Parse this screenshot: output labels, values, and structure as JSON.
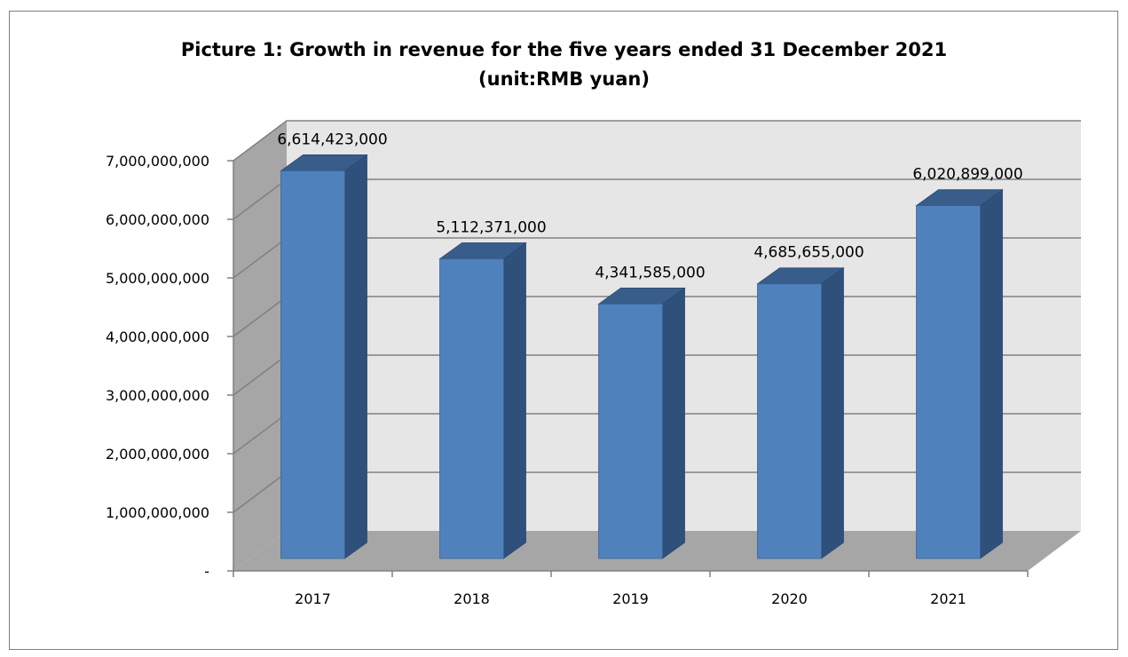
{
  "chart_data": {
    "type": "bar",
    "title": "Picture 1: Growth in revenue for the five years ended 31 December 2021",
    "subtitle": "(unit:RMB yuan)",
    "xlabel": "",
    "ylabel": "",
    "categories": [
      "2017",
      "2018",
      "2019",
      "2020",
      "2021"
    ],
    "values": [
      6614423000,
      5112371000,
      4341585000,
      4685655000,
      6020899000
    ],
    "value_labels": [
      "6,614,423,000",
      "5,112,371,000",
      "4,341,585,000",
      "4,685,655,000",
      "6,020,899,000"
    ],
    "y_ticks": [
      0,
      1000000000,
      2000000000,
      3000000000,
      4000000000,
      5000000000,
      6000000000,
      7000000000
    ],
    "y_tick_labels": [
      "-",
      "1,000,000,000",
      "2,000,000,000",
      "3,000,000,000",
      "4,000,000,000",
      "5,000,000,000",
      "6,000,000,000",
      "7,000,000,000"
    ],
    "ylim": [
      0,
      7000000000
    ],
    "grid": true,
    "style": "3d-column",
    "colors": {
      "bar_front": "#4f81bd",
      "bar_side": "#2e507a",
      "bar_top": "#385d8a",
      "back_wall": "#e6e6e6",
      "side_wall": "#a6a6a6",
      "floor": "#a6a6a6",
      "gridline": "#808080"
    }
  }
}
